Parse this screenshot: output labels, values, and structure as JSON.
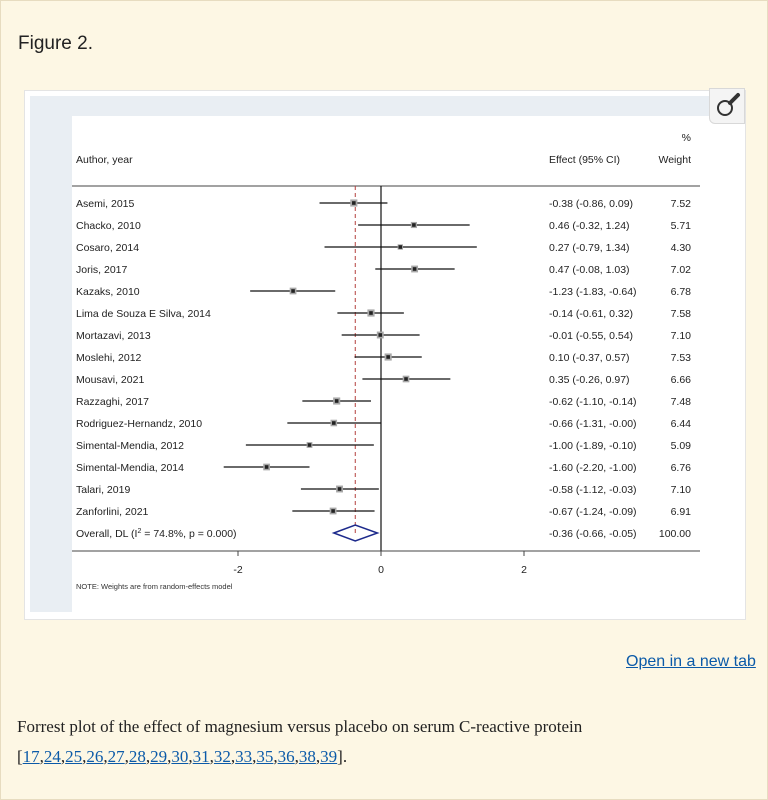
{
  "figure_label": "Figure 2.",
  "open_link": "Open in a new tab",
  "caption": {
    "text": "Forrest plot of the effect of magnesium versus placebo on serum C-reactive protein",
    "refs": [
      "17",
      "24",
      "25",
      "26",
      "27",
      "28",
      "29",
      "30",
      "31",
      "32",
      "33",
      "35",
      "36",
      "38",
      "39"
    ]
  },
  "chart_data": {
    "type": "forest",
    "header": {
      "author": "Author, year",
      "effect": "Effect (95% CI)",
      "weight_pct": "%",
      "weight": "Weight"
    },
    "xlim": [
      -3,
      3
    ],
    "xticks": [
      "-2",
      "0",
      "2"
    ],
    "note": "NOTE: Weights are from random-effects model",
    "studies": [
      {
        "label": "Asemi, 2015",
        "es": -0.38,
        "lo": -0.86,
        "hi": 0.09,
        "effect_text": "-0.38 (-0.86, 0.09)",
        "weight": "7.52"
      },
      {
        "label": "Chacko, 2010",
        "es": 0.46,
        "lo": -0.32,
        "hi": 1.24,
        "effect_text": "0.46 (-0.32, 1.24)",
        "weight": "5.71"
      },
      {
        "label": "Cosaro, 2014",
        "es": 0.27,
        "lo": -0.79,
        "hi": 1.34,
        "effect_text": "0.27 (-0.79, 1.34)",
        "weight": "4.30"
      },
      {
        "label": "Joris, 2017",
        "es": 0.47,
        "lo": -0.08,
        "hi": 1.03,
        "effect_text": "0.47 (-0.08, 1.03)",
        "weight": "7.02"
      },
      {
        "label": "Kazaks, 2010",
        "es": -1.23,
        "lo": -1.83,
        "hi": -0.64,
        "effect_text": "-1.23 (-1.83, -0.64)",
        "weight": "6.78"
      },
      {
        "label": "Lima de Souza E Silva, 2014",
        "es": -0.14,
        "lo": -0.61,
        "hi": 0.32,
        "effect_text": "-0.14 (-0.61, 0.32)",
        "weight": "7.58"
      },
      {
        "label": "Mortazavi, 2013",
        "es": -0.01,
        "lo": -0.55,
        "hi": 0.54,
        "effect_text": "-0.01 (-0.55, 0.54)",
        "weight": "7.10"
      },
      {
        "label": "Moslehi, 2012",
        "es": 0.1,
        "lo": -0.37,
        "hi": 0.57,
        "effect_text": "0.10 (-0.37, 0.57)",
        "weight": "7.53"
      },
      {
        "label": "Mousavi, 2021",
        "es": 0.35,
        "lo": -0.26,
        "hi": 0.97,
        "effect_text": "0.35 (-0.26, 0.97)",
        "weight": "6.66"
      },
      {
        "label": "Razzaghi, 2017",
        "es": -0.62,
        "lo": -1.1,
        "hi": -0.14,
        "effect_text": "-0.62 (-1.10, -0.14)",
        "weight": "7.48"
      },
      {
        "label": "Rodriguez-Hernandz, 2010",
        "es": -0.66,
        "lo": -1.31,
        "hi": -0.0,
        "effect_text": "-0.66 (-1.31, -0.00)",
        "weight": "6.44"
      },
      {
        "label": "Simental-Mendia, 2012",
        "es": -1.0,
        "lo": -1.89,
        "hi": -0.1,
        "effect_text": "-1.00 (-1.89, -0.10)",
        "weight": "5.09"
      },
      {
        "label": "Simental-Mendia, 2014",
        "es": -1.6,
        "lo": -2.2,
        "hi": -1.0,
        "effect_text": "-1.60 (-2.20, -1.00)",
        "weight": "6.76"
      },
      {
        "label": "Talari, 2019",
        "es": -0.58,
        "lo": -1.12,
        "hi": -0.03,
        "effect_text": "-0.58 (-1.12, -0.03)",
        "weight": "7.10"
      },
      {
        "label": "Zanforlini, 2021",
        "es": -0.67,
        "lo": -1.24,
        "hi": -0.09,
        "effect_text": "-0.67 (-1.24, -0.09)",
        "weight": "6.91"
      }
    ],
    "overall": {
      "label_prefix": "Overall, DL (I",
      "label_sup": "2",
      "label_suffix": " = 74.8%, p = 0.000)",
      "es": -0.36,
      "lo": -0.66,
      "hi": -0.05,
      "effect_text": "-0.36 (-0.66, -0.05)",
      "weight": "100.00"
    }
  }
}
